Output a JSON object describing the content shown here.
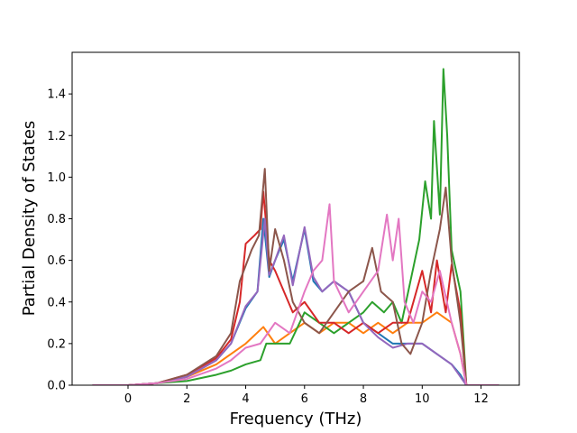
{
  "chart_data": {
    "type": "line",
    "title": "",
    "xlabel": "Frequency (THz)",
    "ylabel": "Partial Density of States",
    "xlim": [
      -1.9,
      13.3
    ],
    "ylim": [
      0.0,
      1.6
    ],
    "xticks": [
      0,
      2,
      4,
      6,
      8,
      10,
      12
    ],
    "yticks": [
      0.0,
      0.2,
      0.4,
      0.6,
      0.8,
      1.0,
      1.2,
      1.4
    ],
    "xtick_labels": [
      "0",
      "2",
      "4",
      "6",
      "8",
      "10",
      "12"
    ],
    "ytick_labels": [
      "0.0",
      "0.2",
      "0.4",
      "0.6",
      "0.8",
      "1.0",
      "1.2",
      "1.4"
    ],
    "grid": false,
    "legend": "none",
    "series": [
      {
        "color": "#1f77b4",
        "points": [
          [
            -1.2,
            0.0
          ],
          [
            0,
            0.0
          ],
          [
            1,
            0.01
          ],
          [
            2,
            0.04
          ],
          [
            3,
            0.12
          ],
          [
            3.5,
            0.2
          ],
          [
            4,
            0.37
          ],
          [
            4.4,
            0.45
          ],
          [
            4.6,
            0.8
          ],
          [
            4.8,
            0.52
          ],
          [
            5,
            0.6
          ],
          [
            5.3,
            0.7
          ],
          [
            5.6,
            0.5
          ],
          [
            6,
            0.75
          ],
          [
            6.3,
            0.5
          ],
          [
            6.6,
            0.45
          ],
          [
            7,
            0.5
          ],
          [
            7.5,
            0.45
          ],
          [
            8,
            0.3
          ],
          [
            8.5,
            0.25
          ],
          [
            9,
            0.2
          ],
          [
            9.5,
            0.2
          ],
          [
            10,
            0.2
          ],
          [
            10.5,
            0.15
          ],
          [
            11,
            0.1
          ],
          [
            11.3,
            0.05
          ],
          [
            11.5,
            0.0
          ],
          [
            12.6,
            0.0
          ]
        ]
      },
      {
        "color": "#ff7f0e",
        "points": [
          [
            -1.2,
            0.0
          ],
          [
            0,
            0.0
          ],
          [
            1,
            0.01
          ],
          [
            2,
            0.04
          ],
          [
            3,
            0.1
          ],
          [
            3.5,
            0.15
          ],
          [
            4,
            0.2
          ],
          [
            4.6,
            0.28
          ],
          [
            5,
            0.2
          ],
          [
            5.5,
            0.25
          ],
          [
            6,
            0.3
          ],
          [
            6.5,
            0.25
          ],
          [
            7,
            0.3
          ],
          [
            7.5,
            0.3
          ],
          [
            8,
            0.25
          ],
          [
            8.5,
            0.3
          ],
          [
            9,
            0.25
          ],
          [
            9.5,
            0.3
          ],
          [
            10,
            0.3
          ],
          [
            10.5,
            0.35
          ],
          [
            11,
            0.3
          ],
          [
            11.3,
            0.15
          ],
          [
            11.5,
            0.0
          ],
          [
            12.6,
            0.0
          ]
        ]
      },
      {
        "color": "#2ca02c",
        "points": [
          [
            -1.2,
            0.0
          ],
          [
            0,
            0.0
          ],
          [
            1,
            0.01
          ],
          [
            2,
            0.02
          ],
          [
            3,
            0.05
          ],
          [
            3.5,
            0.07
          ],
          [
            4,
            0.1
          ],
          [
            4.5,
            0.12
          ],
          [
            4.7,
            0.2
          ],
          [
            5,
            0.2
          ],
          [
            5.5,
            0.2
          ],
          [
            6,
            0.35
          ],
          [
            6.5,
            0.3
          ],
          [
            7,
            0.25
          ],
          [
            7.5,
            0.3
          ],
          [
            8,
            0.35
          ],
          [
            8.3,
            0.4
          ],
          [
            8.7,
            0.35
          ],
          [
            9,
            0.4
          ],
          [
            9.3,
            0.3
          ],
          [
            9.6,
            0.5
          ],
          [
            9.9,
            0.7
          ],
          [
            10.1,
            0.98
          ],
          [
            10.3,
            0.8
          ],
          [
            10.4,
            1.27
          ],
          [
            10.6,
            0.82
          ],
          [
            10.72,
            1.52
          ],
          [
            10.85,
            1.2
          ],
          [
            11,
            0.65
          ],
          [
            11.3,
            0.45
          ],
          [
            11.5,
            0.0
          ],
          [
            12.6,
            0.0
          ]
        ]
      },
      {
        "color": "#d62728",
        "points": [
          [
            -1.2,
            0.0
          ],
          [
            0,
            0.0
          ],
          [
            1,
            0.01
          ],
          [
            2,
            0.05
          ],
          [
            3,
            0.13
          ],
          [
            3.5,
            0.22
          ],
          [
            3.8,
            0.4
          ],
          [
            4,
            0.68
          ],
          [
            4.3,
            0.72
          ],
          [
            4.5,
            0.75
          ],
          [
            4.6,
            0.93
          ],
          [
            4.8,
            0.6
          ],
          [
            5,
            0.55
          ],
          [
            5.3,
            0.45
          ],
          [
            5.6,
            0.35
          ],
          [
            6,
            0.4
          ],
          [
            6.5,
            0.3
          ],
          [
            7,
            0.3
          ],
          [
            7.5,
            0.25
          ],
          [
            8,
            0.3
          ],
          [
            8.5,
            0.25
          ],
          [
            9,
            0.3
          ],
          [
            9.5,
            0.3
          ],
          [
            10,
            0.55
          ],
          [
            10.3,
            0.35
          ],
          [
            10.5,
            0.6
          ],
          [
            10.8,
            0.35
          ],
          [
            11,
            0.58
          ],
          [
            11.3,
            0.35
          ],
          [
            11.5,
            0.0
          ],
          [
            12.6,
            0.0
          ]
        ]
      },
      {
        "color": "#9467bd",
        "points": [
          [
            -1.2,
            0.0
          ],
          [
            0,
            0.0
          ],
          [
            1,
            0.01
          ],
          [
            2,
            0.04
          ],
          [
            3,
            0.12
          ],
          [
            3.5,
            0.2
          ],
          [
            4,
            0.38
          ],
          [
            4.4,
            0.45
          ],
          [
            4.65,
            0.8
          ],
          [
            4.8,
            0.53
          ],
          [
            5,
            0.6
          ],
          [
            5.3,
            0.72
          ],
          [
            5.6,
            0.48
          ],
          [
            6,
            0.76
          ],
          [
            6.3,
            0.52
          ],
          [
            6.6,
            0.45
          ],
          [
            7,
            0.5
          ],
          [
            7.5,
            0.45
          ],
          [
            8,
            0.3
          ],
          [
            8.5,
            0.23
          ],
          [
            9,
            0.18
          ],
          [
            9.5,
            0.2
          ],
          [
            10,
            0.2
          ],
          [
            10.5,
            0.15
          ],
          [
            11,
            0.1
          ],
          [
            11.3,
            0.04
          ],
          [
            11.5,
            0.0
          ],
          [
            12.6,
            0.0
          ]
        ]
      },
      {
        "color": "#8c564b",
        "points": [
          [
            -1.2,
            0.0
          ],
          [
            0,
            0.0
          ],
          [
            1,
            0.01
          ],
          [
            2,
            0.05
          ],
          [
            3,
            0.14
          ],
          [
            3.5,
            0.25
          ],
          [
            3.8,
            0.5
          ],
          [
            4.2,
            0.65
          ],
          [
            4.45,
            0.72
          ],
          [
            4.65,
            1.04
          ],
          [
            4.8,
            0.55
          ],
          [
            5,
            0.75
          ],
          [
            5.3,
            0.6
          ],
          [
            5.6,
            0.4
          ],
          [
            6,
            0.3
          ],
          [
            6.5,
            0.25
          ],
          [
            7,
            0.35
          ],
          [
            7.5,
            0.45
          ],
          [
            8,
            0.5
          ],
          [
            8.3,
            0.66
          ],
          [
            8.6,
            0.45
          ],
          [
            9,
            0.4
          ],
          [
            9.3,
            0.2
          ],
          [
            9.6,
            0.15
          ],
          [
            10,
            0.3
          ],
          [
            10.3,
            0.55
          ],
          [
            10.6,
            0.75
          ],
          [
            10.8,
            0.95
          ],
          [
            11,
            0.6
          ],
          [
            11.3,
            0.3
          ],
          [
            11.5,
            0.0
          ],
          [
            12.6,
            0.0
          ]
        ]
      },
      {
        "color": "#e377c2",
        "points": [
          [
            -1.2,
            0.0
          ],
          [
            0,
            0.0
          ],
          [
            1,
            0.01
          ],
          [
            2,
            0.03
          ],
          [
            3,
            0.08
          ],
          [
            3.5,
            0.12
          ],
          [
            4,
            0.18
          ],
          [
            4.5,
            0.2
          ],
          [
            5,
            0.3
          ],
          [
            5.5,
            0.25
          ],
          [
            6,
            0.45
          ],
          [
            6.3,
            0.55
          ],
          [
            6.6,
            0.6
          ],
          [
            6.85,
            0.87
          ],
          [
            7,
            0.5
          ],
          [
            7.5,
            0.35
          ],
          [
            8,
            0.45
          ],
          [
            8.5,
            0.55
          ],
          [
            8.8,
            0.82
          ],
          [
            9,
            0.6
          ],
          [
            9.2,
            0.8
          ],
          [
            9.4,
            0.4
          ],
          [
            9.7,
            0.3
          ],
          [
            10,
            0.45
          ],
          [
            10.3,
            0.4
          ],
          [
            10.6,
            0.55
          ],
          [
            11,
            0.3
          ],
          [
            11.3,
            0.15
          ],
          [
            11.5,
            0.0
          ],
          [
            12.6,
            0.0
          ]
        ]
      }
    ]
  }
}
